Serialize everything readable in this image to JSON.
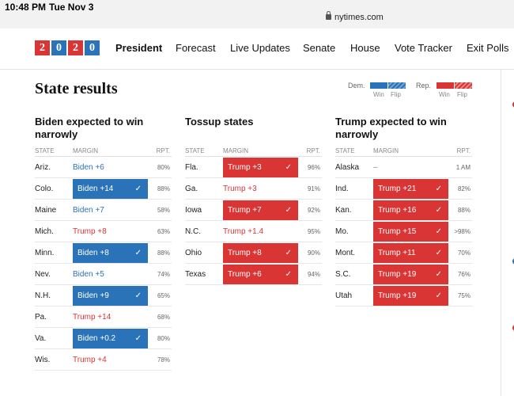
{
  "status": {
    "time": "10:48 PM",
    "date": "Tue Nov 3",
    "url": "nytimes.com"
  },
  "nav": {
    "logo_digits": [
      "2",
      "0",
      "2",
      "0"
    ],
    "items": [
      "President",
      "Forecast",
      "Live Updates",
      "Senate",
      "House",
      "Vote Tracker",
      "Exit Polls"
    ],
    "active": "President"
  },
  "page": {
    "title": "State results"
  },
  "legend": {
    "dem": "Dem.",
    "rep": "Rep.",
    "win": "Win",
    "flip": "Flip",
    "colors": {
      "dem": "#2a73b8",
      "rep": "#d93535"
    }
  },
  "headers": {
    "state": "STATE",
    "margin": "MARGIN",
    "rpt": "RPT."
  },
  "columns": [
    {
      "title": "Biden expected to win narrowly",
      "rows": [
        {
          "state": "Ariz.",
          "margin": "Biden +6",
          "party": "dem",
          "called": false,
          "rpt": "80%"
        },
        {
          "state": "Colo.",
          "margin": "Biden +14",
          "party": "dem",
          "called": true,
          "rpt": "88%"
        },
        {
          "state": "Maine",
          "margin": "Biden +7",
          "party": "dem",
          "called": false,
          "rpt": "58%"
        },
        {
          "state": "Mich.",
          "margin": "Trump +8",
          "party": "rep",
          "called": false,
          "rpt": "63%"
        },
        {
          "state": "Minn.",
          "margin": "Biden +8",
          "party": "dem",
          "called": true,
          "rpt": "88%"
        },
        {
          "state": "Nev.",
          "margin": "Biden +5",
          "party": "dem",
          "called": false,
          "rpt": "74%"
        },
        {
          "state": "N.H.",
          "margin": "Biden +9",
          "party": "dem",
          "called": true,
          "rpt": "65%"
        },
        {
          "state": "Pa.",
          "margin": "Trump +14",
          "party": "rep",
          "called": false,
          "rpt": "68%"
        },
        {
          "state": "Va.",
          "margin": "Biden +0.2",
          "party": "dem",
          "called": true,
          "rpt": "80%"
        },
        {
          "state": "Wis.",
          "margin": "Trump +4",
          "party": "rep",
          "called": false,
          "rpt": "78%"
        }
      ]
    },
    {
      "title": "Tossup states",
      "rows": [
        {
          "state": "Fla.",
          "margin": "Trump +3",
          "party": "rep",
          "called": true,
          "rpt": "96%"
        },
        {
          "state": "Ga.",
          "margin": "Trump +3",
          "party": "rep",
          "called": false,
          "rpt": "91%"
        },
        {
          "state": "Iowa",
          "margin": "Trump +7",
          "party": "rep",
          "called": true,
          "rpt": "92%"
        },
        {
          "state": "N.C.",
          "margin": "Trump +1.4",
          "party": "rep",
          "called": false,
          "rpt": "95%"
        },
        {
          "state": "Ohio",
          "margin": "Trump +8",
          "party": "rep",
          "called": true,
          "rpt": "90%"
        },
        {
          "state": "Texas",
          "margin": "Trump +6",
          "party": "rep",
          "called": true,
          "rpt": "94%"
        }
      ]
    },
    {
      "title": "Trump expected to win narrowly",
      "rows": [
        {
          "state": "Alaska",
          "margin": "–",
          "party": "neutral",
          "called": false,
          "rpt": "1 AM"
        },
        {
          "state": "Ind.",
          "margin": "Trump +21",
          "party": "rep",
          "called": true,
          "rpt": "82%"
        },
        {
          "state": "Kan.",
          "margin": "Trump +16",
          "party": "rep",
          "called": true,
          "rpt": "88%"
        },
        {
          "state": "Mo.",
          "margin": "Trump +15",
          "party": "rep",
          "called": true,
          "rpt": ">98%"
        },
        {
          "state": "Mont.",
          "margin": "Trump +11",
          "party": "rep",
          "called": true,
          "rpt": "70%"
        },
        {
          "state": "S.C.",
          "margin": "Trump +19",
          "party": "rep",
          "called": true,
          "rpt": "76%"
        },
        {
          "state": "Utah",
          "margin": "Trump +19",
          "party": "rep",
          "called": true,
          "rpt": "75%"
        }
      ]
    }
  ]
}
